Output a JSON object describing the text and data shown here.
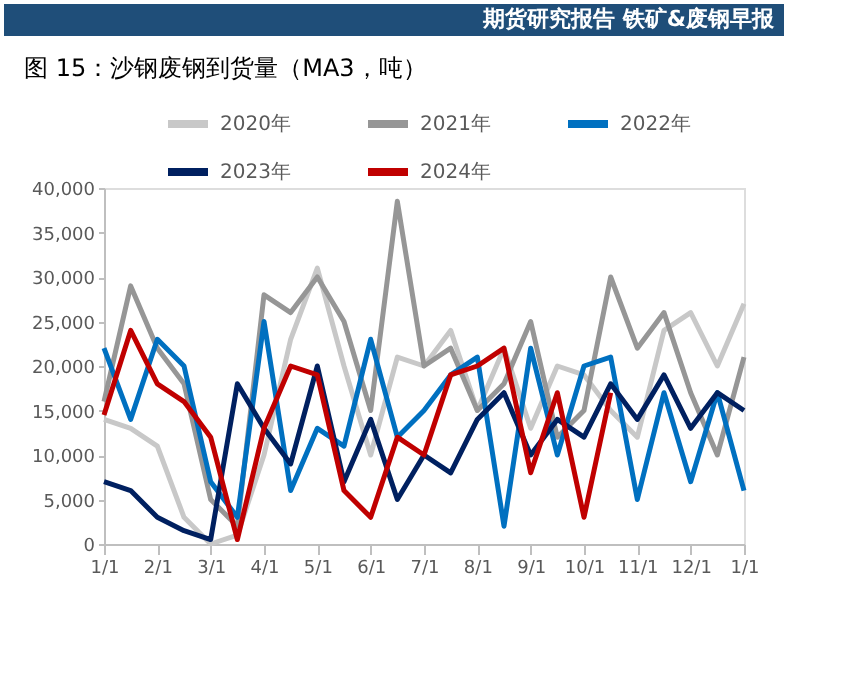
{
  "chart_data": {
    "type": "line",
    "title": "图 15：沙钢废钢到货量（MA3，吨）",
    "annotations": [
      "期货研究报告 铁矿&废钢早报"
    ],
    "categories": [
      "1/1",
      null,
      "2/1",
      null,
      "3/1",
      null,
      "4/1",
      null,
      "5/1",
      null,
      "6/1",
      null,
      "7/1",
      null,
      "8/1",
      null,
      "9/1",
      null,
      "10/1",
      null,
      "11/1",
      null,
      "12/1",
      null,
      "1/1"
    ],
    "ylim": [
      0,
      40000
    ],
    "yticks": [
      {
        "value": 0,
        "label": "0"
      },
      {
        "value": 5000,
        "label": "5,000"
      },
      {
        "value": 10000,
        "label": "10,000"
      },
      {
        "value": 15000,
        "label": "15,000"
      },
      {
        "value": 20000,
        "label": "20,000"
      },
      {
        "value": 25000,
        "label": "25,000"
      },
      {
        "value": 30000,
        "label": "30,000"
      },
      {
        "value": 35000,
        "label": "35,000"
      },
      {
        "value": 40000,
        "label": "40,000"
      }
    ],
    "grid": false,
    "legend": "top",
    "line_style": "solid",
    "marker": "none",
    "series": [
      {
        "name": "2020年",
        "color": "#c8c8c8",
        "values": [
          14000,
          13000,
          11000,
          3000,
          0,
          1000,
          10000,
          23000,
          31000,
          20000,
          10000,
          21000,
          20000,
          24000,
          15000,
          22000,
          13000,
          20000,
          19000,
          15000,
          12000,
          24000,
          26000,
          20000,
          27000
        ]
      },
      {
        "name": "2021年",
        "color": "#969696",
        "values": [
          16000,
          29000,
          22000,
          18000,
          5000,
          2000,
          28000,
          26000,
          30000,
          25000,
          15000,
          38500,
          20000,
          22000,
          15000,
          18000,
          25000,
          12000,
          15000,
          30000,
          22000,
          26000,
          17000,
          10000,
          21000
        ]
      },
      {
        "name": "2022年",
        "color": "#0070c0",
        "values": [
          22000,
          14000,
          23000,
          20000,
          7000,
          3000,
          25000,
          6000,
          13000,
          11000,
          23000,
          12000,
          15000,
          19000,
          21000,
          2000,
          22000,
          10000,
          20000,
          21000,
          5000,
          17000,
          7000,
          17000,
          6000
        ]
      },
      {
        "name": "2023年",
        "color": "#002060",
        "values": [
          7000,
          6000,
          3000,
          1500,
          500,
          18000,
          13000,
          9000,
          20000,
          7000,
          14000,
          5000,
          10000,
          8000,
          14000,
          17000,
          10000,
          14000,
          12000,
          18000,
          14000,
          19000,
          13000,
          17000,
          15000
        ]
      },
      {
        "name": "2024年",
        "color": "#c00000",
        "values": [
          14500,
          24000,
          18000,
          16000,
          12000,
          500,
          13000,
          20000,
          19000,
          6000,
          3000,
          12000,
          10000,
          19000,
          20000,
          22000,
          8000,
          17000,
          3000,
          17000,
          null,
          null,
          null,
          null,
          null
        ]
      }
    ]
  }
}
